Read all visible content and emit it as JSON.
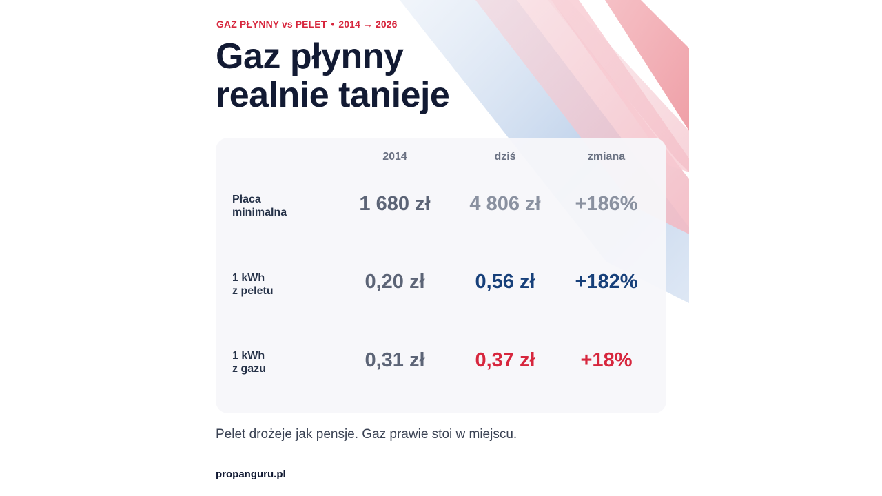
{
  "header": {
    "kicker_left": "GAZ PŁYNNY vs PELET",
    "kicker_sep": "•",
    "kicker_right": "2014 → 2026",
    "title_line1": "Gaz płynny",
    "title_line2": "realnie tanieje"
  },
  "table": {
    "columns": [
      "2014",
      "dziś",
      "zmiana"
    ],
    "rows": [
      {
        "label_line1": "Płaca",
        "label_line2": "minimalna",
        "values": [
          "1 680 zł",
          "4 806 zł",
          "+186%"
        ]
      },
      {
        "label_line1": "1 kWh",
        "label_line2": "z peletu",
        "values": [
          "0,20 zł",
          "0,56 zł",
          "+182%"
        ]
      },
      {
        "label_line1": "1 kWh",
        "label_line2": "z gazu",
        "values": [
          "0,31 zł",
          "0,37 zł",
          "+18%"
        ]
      }
    ]
  },
  "footer": {
    "text": "Pelet drożeje jak pensje. Gaz prawie stoi w miejscu.",
    "brand": "propanguru.pl"
  },
  "colors": {
    "accent_red": "#d7263d",
    "navy": "#17407a",
    "gray_value": "#8a91a0",
    "dark_gray_value": "#5c6476",
    "title": "#121a33"
  }
}
